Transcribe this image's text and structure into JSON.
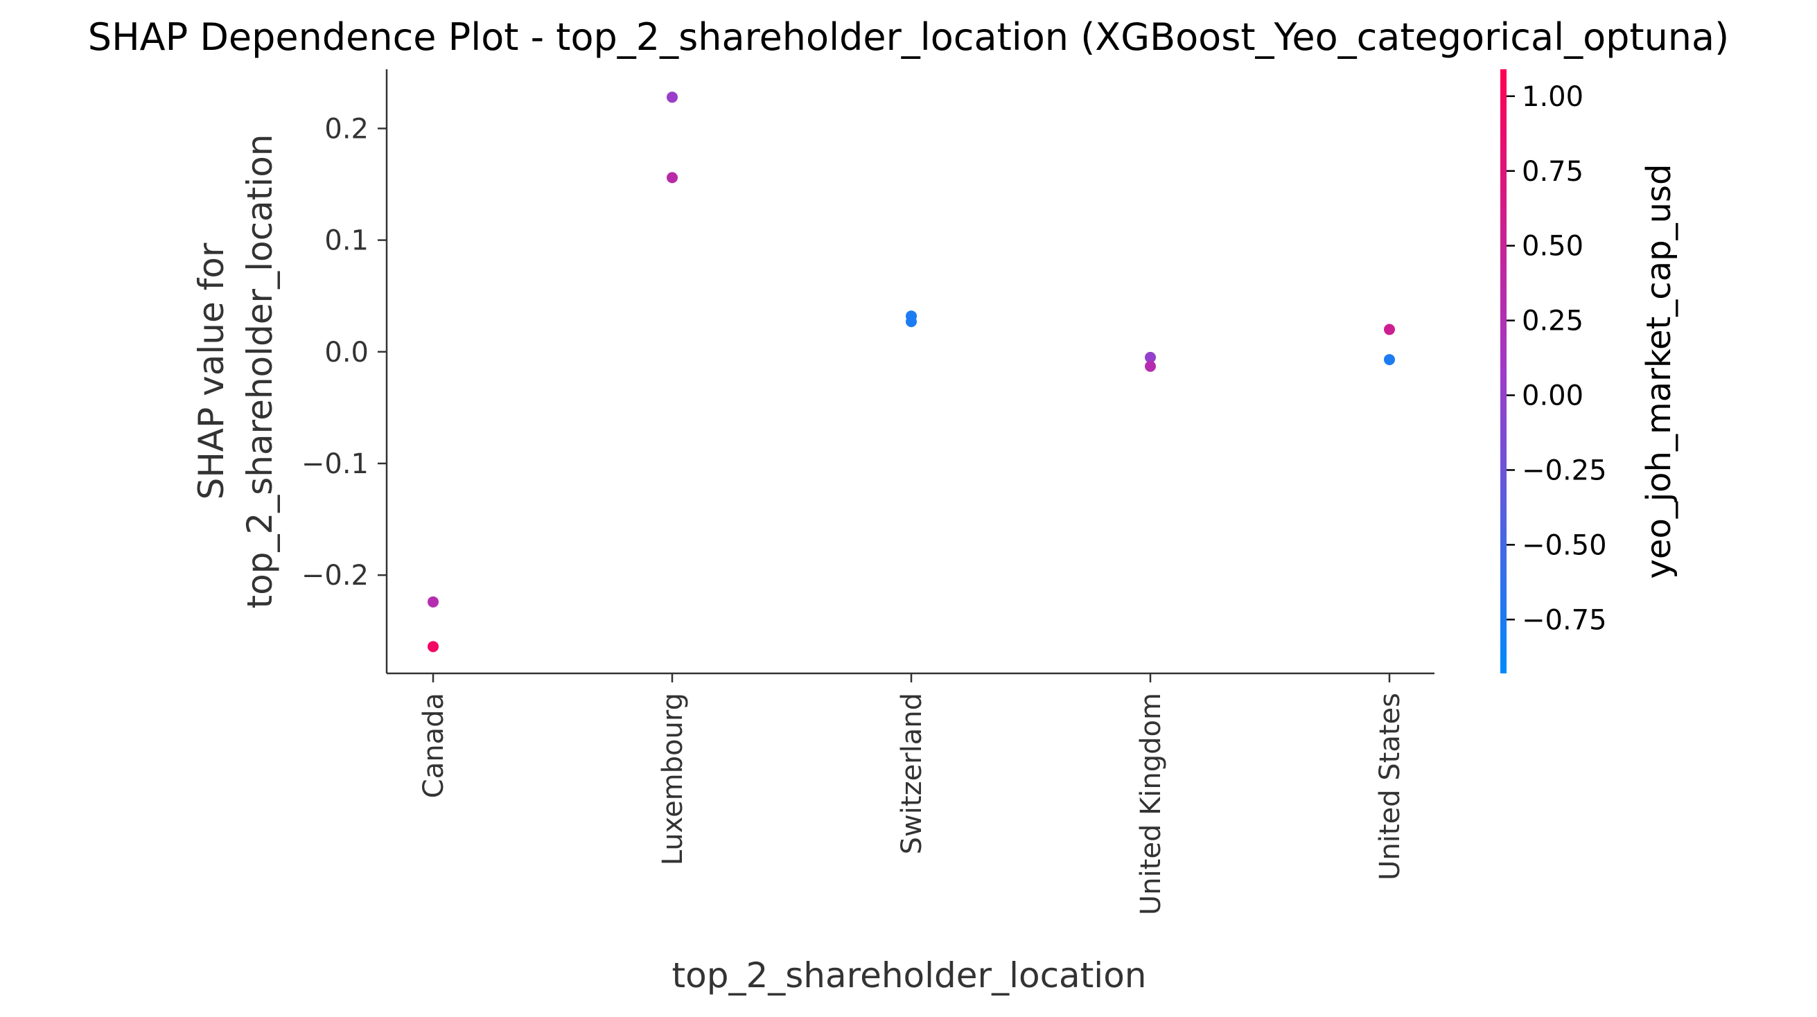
{
  "chart_data": {
    "type": "scatter",
    "title": "SHAP Dependence Plot - top_2_shareholder_location (XGBoost_Yeo_categorical_optuna)",
    "xlabel": "top_2_shareholder_location",
    "ylabel_line1": "SHAP value for",
    "ylabel_line2": "top_2_shareholder_location",
    "categories": [
      "Canada",
      "Luxembourg",
      "Switzerland",
      "United Kingdom",
      "United States"
    ],
    "ylim": [
      -0.288,
      0.253
    ],
    "yticks": [
      0.2,
      0.1,
      0.0,
      -0.1,
      -0.2
    ],
    "ytick_labels": [
      "0.2",
      "0.1",
      "0.0",
      "−0.1",
      "−0.2"
    ],
    "points": [
      {
        "category": "Canada",
        "shap": -0.224,
        "color_value": 0.3
      },
      {
        "category": "Canada",
        "shap": -0.264,
        "color_value": 0.95
      },
      {
        "category": "Luxembourg",
        "shap": 0.228,
        "color_value": 0.05
      },
      {
        "category": "Luxembourg",
        "shap": 0.156,
        "color_value": 0.35
      },
      {
        "category": "Switzerland",
        "shap": 0.032,
        "color_value": -0.75
      },
      {
        "category": "Switzerland",
        "shap": 0.027,
        "color_value": -0.75
      },
      {
        "category": "United Kingdom",
        "shap": -0.005,
        "color_value": 0.0
      },
      {
        "category": "United Kingdom",
        "shap": -0.013,
        "color_value": 0.3
      },
      {
        "category": "United States",
        "shap": 0.02,
        "color_value": 0.55
      },
      {
        "category": "United States",
        "shap": -0.007,
        "color_value": -0.75
      }
    ],
    "colorbar": {
      "label": "yeo_joh_market_cap_usd",
      "range": [
        -0.93,
        1.09
      ],
      "ticks": [
        1.0,
        0.75,
        0.5,
        0.25,
        0.0,
        -0.25,
        -0.5,
        -0.75
      ],
      "tick_labels": [
        "1.00",
        "0.75",
        "0.50",
        "0.25",
        "0.00",
        "−0.25",
        "−0.50",
        "−0.75"
      ],
      "color_low": "#008afb",
      "color_high": "#ff0052"
    },
    "grid": false,
    "legend": "colorbar-right"
  }
}
